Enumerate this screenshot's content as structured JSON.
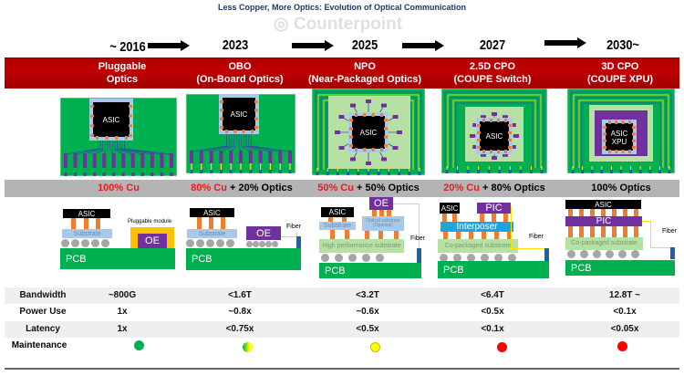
{
  "title": "Less Copper, More Optics: Evolution of Optical Communication",
  "watermark": "Counterpoint",
  "stages": [
    {
      "year": "~ 2016",
      "name": "Pluggable",
      "sub": "Optics",
      "cu": "100% Cu",
      "optics": ""
    },
    {
      "year": "2023",
      "name": "OBO",
      "sub": "(On-Board Optics)",
      "cu": "80% Cu",
      "optics": " + 20% Optics"
    },
    {
      "year": "2025",
      "name": "NPO",
      "sub": "(Near-Packaged Optics)",
      "cu": "50% Cu",
      "optics": " + 50% Optics"
    },
    {
      "year": "2027",
      "name": "2.5D CPO",
      "sub": "(COUPE Switch)",
      "cu": "20% Cu",
      "optics": " + 80% Optics"
    },
    {
      "year": "2030~",
      "name": "3D CPO",
      "sub": "(COUPE XPU)",
      "cu": "",
      "optics": "100% Optics"
    }
  ],
  "diagram_labels": {
    "asic": "ASIC",
    "xpu": "XPU",
    "substrate": "Substrate",
    "pluggable_module": "Pluggable module",
    "oe": "OE",
    "pcb": "PCB",
    "fiber": "Fiber",
    "optical_substrate": "Optical substrate (Optional)",
    "high_perf_substrate": "High performance substrate",
    "pic": "PIC",
    "interposer": "Interposer",
    "co_packaged_substrate": "Co-packaged substrate"
  },
  "table": {
    "rows": [
      {
        "label": "Bandwidth",
        "values": [
          "~800G",
          "<1.6T",
          "<3.2T",
          "<6.4T",
          "12.8T ~"
        ]
      },
      {
        "label": "Power Use",
        "values": [
          "1x",
          "~0.8x",
          "~0.6x",
          "<0.5x",
          "<0.1x"
        ]
      },
      {
        "label": "Latency",
        "values": [
          "1x",
          "<0.75x",
          "<0.5x",
          "<0.1x",
          "<0.05x"
        ]
      }
    ],
    "maintenance_label": "Maintenance",
    "maintenance": [
      "green",
      "green-yellow",
      "yellow",
      "red",
      "red"
    ]
  },
  "colors": {
    "band": "#c00000",
    "cu": "#e41c1c",
    "pcb": "#00b050",
    "oe": "#7030a0",
    "pin": "#ed7d31",
    "green": "#00b050",
    "yellow": "#ffff00",
    "red": "#ff0000",
    "title": "#1f3864"
  }
}
